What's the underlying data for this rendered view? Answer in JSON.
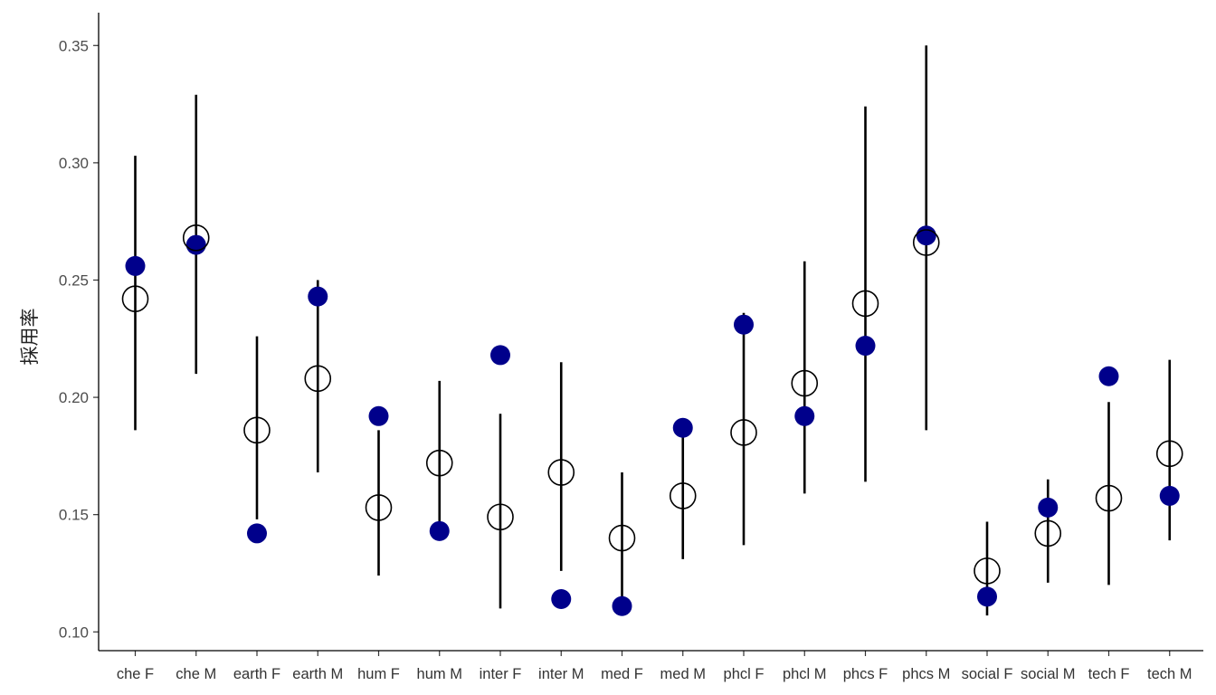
{
  "chart_data": {
    "type": "scatter",
    "title": "",
    "xlabel": "",
    "ylabel": "採用率",
    "ylim": [
      0.092,
      0.364
    ],
    "yticks": [
      0.1,
      0.15,
      0.2,
      0.25,
      0.3,
      0.35
    ],
    "ytick_labels": [
      "0.10",
      "0.15",
      "0.20",
      "0.25",
      "0.30",
      "0.35"
    ],
    "grid": false,
    "legend": "none",
    "categories": [
      "che F",
      "che M",
      "earth F",
      "earth M",
      "hum F",
      "hum M",
      "inter F",
      "inter M",
      "med F",
      "med M",
      "phcl F",
      "phcl M",
      "phcs F",
      "phcs M",
      "social F",
      "social M",
      "tech F",
      "tech M"
    ],
    "series": [
      {
        "kind": "interval",
        "color": "#000000",
        "low": [
          0.186,
          0.21,
          0.148,
          0.168,
          0.124,
          0.14,
          0.11,
          0.126,
          0.11,
          0.131,
          0.137,
          0.159,
          0.164,
          0.186,
          0.107,
          0.121,
          0.12,
          0.139
        ],
        "high": [
          0.303,
          0.329,
          0.226,
          0.25,
          0.186,
          0.207,
          0.193,
          0.215,
          0.168,
          0.185,
          0.236,
          0.258,
          0.324,
          0.35,
          0.147,
          0.165,
          0.198,
          0.216
        ]
      },
      {
        "kind": "filled-point",
        "color": "#00008b",
        "values": [
          0.256,
          0.265,
          0.142,
          0.243,
          0.192,
          0.143,
          0.218,
          0.114,
          0.111,
          0.187,
          0.231,
          0.192,
          0.222,
          0.269,
          0.115,
          0.153,
          0.209,
          0.158
        ]
      },
      {
        "kind": "hollow-point",
        "color": "#000000",
        "values": [
          0.242,
          0.268,
          0.186,
          0.208,
          0.153,
          0.172,
          0.149,
          0.168,
          0.14,
          0.158,
          0.185,
          0.206,
          0.24,
          0.266,
          0.126,
          0.142,
          0.157,
          0.176
        ]
      }
    ]
  }
}
